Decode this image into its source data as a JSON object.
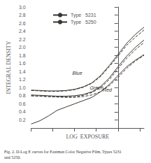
{
  "chart_data": {
    "type": "line",
    "xlabel": "LOG  EXPOSURE",
    "ylabel": "INTEGRAL DENSITY",
    "caption": "Fig. 2. D-Log E curves for Eastman Color Negative Film, Types 5231\nand 5250.",
    "x": [
      -2.0,
      -1.8,
      -1.6,
      -1.4,
      -1.2,
      -1.0,
      -0.8,
      -0.6,
      -0.4,
      -0.2,
      0.0,
      0.2,
      0.4,
      0.6
    ],
    "series": [
      {
        "name": "Type   5231",
        "line_style": "solid",
        "color": "#3a3530",
        "values": [
          0.94,
          0.93,
          0.92,
          0.92,
          0.93,
          0.96,
          1.02,
          1.12,
          1.3,
          1.55,
          1.82,
          2.1,
          2.32,
          2.5
        ]
      },
      {
        "name": "Type   5250",
        "line_style": "dashed",
        "color": "#3a3530",
        "values": [
          0.93,
          0.92,
          0.91,
          0.91,
          0.92,
          0.95,
          1.01,
          1.11,
          1.28,
          1.52,
          1.78,
          2.05,
          2.25,
          2.43
        ]
      },
      {
        "name": "Type   5231",
        "line_style": "solid",
        "color": "#3a3530",
        "values": [
          0.82,
          0.81,
          0.8,
          0.79,
          0.79,
          0.8,
          0.83,
          0.9,
          1.03,
          1.24,
          1.52,
          1.78,
          2.0,
          2.18
        ]
      },
      {
        "name": "Type   5250",
        "line_style": "dashed",
        "color": "#3a3530",
        "values": [
          0.8,
          0.79,
          0.78,
          0.77,
          0.77,
          0.78,
          0.81,
          0.88,
          1.0,
          1.2,
          1.47,
          1.73,
          1.94,
          2.12
        ]
      },
      {
        "name": "Type   5231",
        "line_style": "solid",
        "color": "#3a3530",
        "values": [
          0.1,
          0.18,
          0.3,
          0.44,
          0.52,
          0.6,
          0.68,
          0.76,
          0.9,
          1.08,
          1.3,
          1.52,
          1.68,
          1.82
        ]
      },
      {
        "name": "Type   5250",
        "line_style": "dashed",
        "color": "#3a3530",
        "values": [
          0.8,
          0.79,
          0.78,
          0.77,
          0.76,
          0.76,
          0.78,
          0.82,
          0.9,
          1.05,
          1.25,
          1.48,
          1.66,
          1.8
        ]
      }
    ],
    "annotations": [
      {
        "text": "Blue",
        "x": -1.05,
        "y": 1.3
      },
      {
        "text": "Green",
        "x": -0.65,
        "y": 0.93
      },
      {
        "text": "Red",
        "x": -0.35,
        "y": 0.88
      }
    ],
    "xlim": [
      -2.0,
      0.6
    ],
    "xticks": [
      -2.0,
      -1.5,
      -1.0,
      -0.5,
      0.0,
      0.5
    ],
    "ylim": [
      0.0,
      3.0
    ],
    "yticks": [
      0.2,
      0.4,
      0.6,
      0.8,
      {
        "value": 1.0,
        "label": "1.0"
      },
      1.2,
      1.4,
      1.6,
      1.8,
      {
        "value": 2.0,
        "label": "2.0"
      },
      2.2,
      2.4,
      2.6,
      2.8,
      {
        "value": 3.0,
        "label": "3.0"
      }
    ],
    "tick_labels": "y",
    "grid": false,
    "legend": "upper left"
  }
}
